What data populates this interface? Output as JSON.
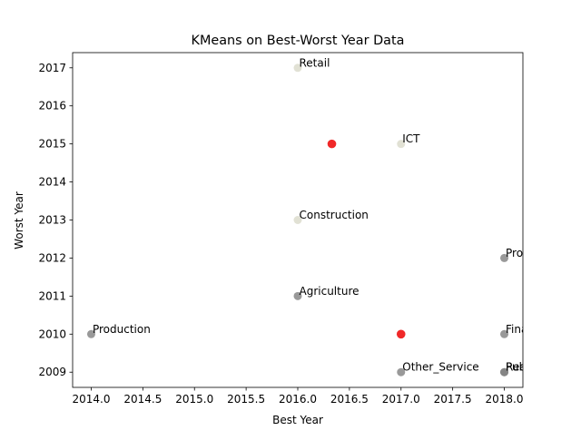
{
  "chart_data": {
    "type": "scatter",
    "title": "KMeans on Best-Worst Year Data",
    "xlabel": "Best Year",
    "ylabel": "Worst Year",
    "xlim": [
      2013.82,
      2018.18
    ],
    "ylim": [
      2008.6,
      2017.4
    ],
    "xticks": [
      "2014.0",
      "2014.5",
      "2015.0",
      "2015.5",
      "2016.0",
      "2016.5",
      "2017.0",
      "2017.5",
      "2018.0"
    ],
    "yticks": [
      "2009",
      "2010",
      "2011",
      "2012",
      "2013",
      "2014",
      "2015",
      "2016",
      "2017"
    ],
    "grid": false,
    "points": [
      {
        "label": "Retail",
        "x": 2016,
        "y": 2017,
        "cluster": 1
      },
      {
        "label": "ICT",
        "x": 2017,
        "y": 2015,
        "cluster": 1
      },
      {
        "label": "Construction",
        "x": 2016,
        "y": 2013,
        "cluster": 1
      },
      {
        "label": "Professional_",
        "x": 2018,
        "y": 2012,
        "cluster": 0
      },
      {
        "label": "Agriculture",
        "x": 2016,
        "y": 2011,
        "cluster": 0
      },
      {
        "label": "Production",
        "x": 2014,
        "y": 2010,
        "cluster": 0
      },
      {
        "label": "Finance",
        "x": 2018,
        "y": 2010,
        "cluster": 0
      },
      {
        "label": "Other_Service",
        "x": 2017,
        "y": 2009,
        "cluster": 0
      },
      {
        "label": "Real_Estate",
        "x": 2018,
        "y": 2009,
        "cluster": 0
      },
      {
        "label": "Public_Admin",
        "x": 2018,
        "y": 2009,
        "cluster": 0
      }
    ],
    "centroids": [
      {
        "x": 2016.33,
        "y": 2015
      },
      {
        "x": 2017,
        "y": 2010
      }
    ],
    "colors": {
      "cluster_0": "#808080",
      "cluster_1": "#d9d9c9",
      "centroid": "#ee1111",
      "axis": "#000000"
    }
  }
}
